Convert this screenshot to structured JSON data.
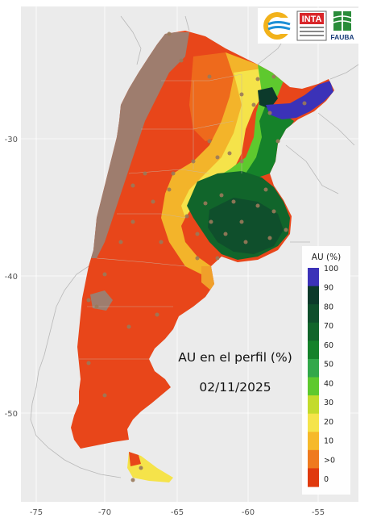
{
  "map": {
    "title": "AU en el perfil (%)",
    "date": "02/11/2025",
    "x_ticks": [
      "-75",
      "-70",
      "-65",
      "-60",
      "-55"
    ],
    "y_ticks": [
      "-30",
      "-40",
      "-50"
    ],
    "background_color": "#ebebeb",
    "grid_color": "#ffffff"
  },
  "legend": {
    "title": "AU (%)",
    "labels": [
      "100",
      "90",
      "80",
      "70",
      "60",
      "50",
      "40",
      "30",
      "20",
      "10",
      ">0",
      "0"
    ],
    "colors": [
      "#3b32b8",
      "#0c3a2b",
      "#0f4f2c",
      "#11652b",
      "#15822a",
      "#32a84a",
      "#5ec92e",
      "#c3db2c",
      "#f5e44a",
      "#f6b92a",
      "#ef7a1e",
      "#e03a0e"
    ]
  },
  "logos": {
    "inta": "INTA",
    "fauba": "FAUBA"
  }
}
